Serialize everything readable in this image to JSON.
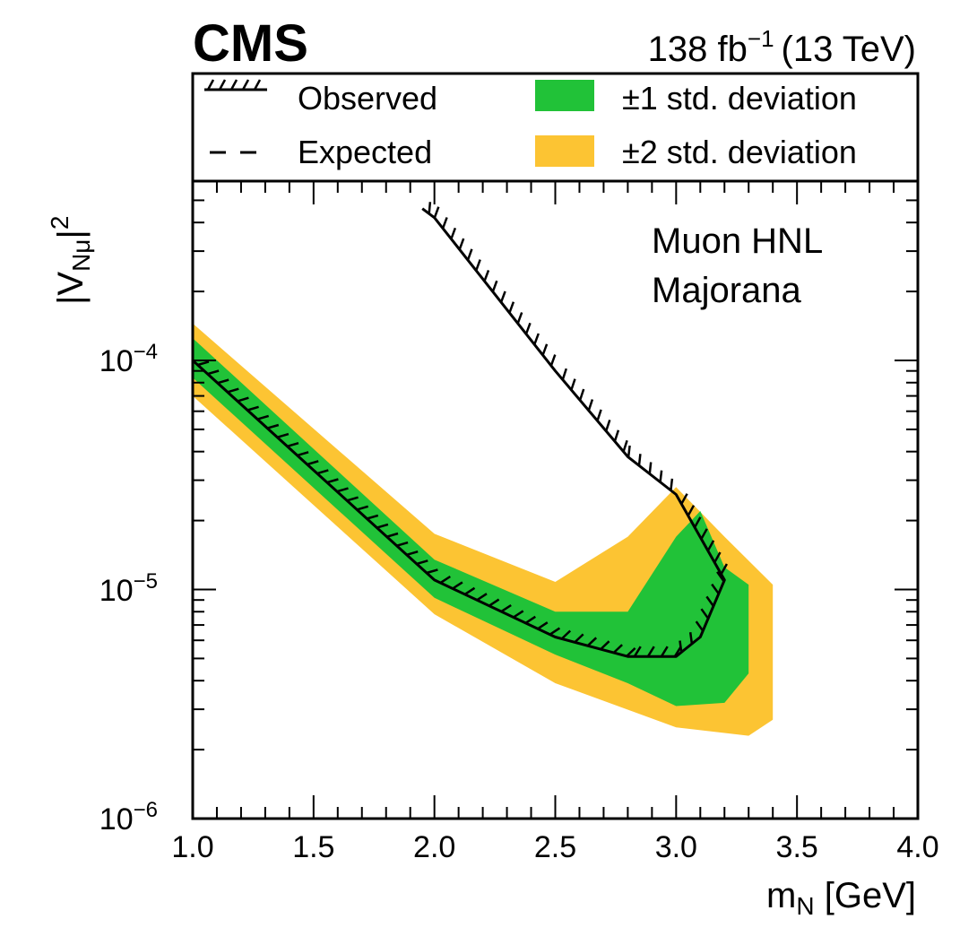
{
  "header": {
    "experiment": "CMS",
    "luminosity": "138 fb",
    "luminosity_exp": "−1",
    "energy": "(13 TeV)"
  },
  "annotation": {
    "line1": "Muon HNL",
    "line2": "Majorana"
  },
  "legend": {
    "observed": "Observed",
    "expected": "Expected",
    "band1": "±1 std. deviation",
    "band2": "±2 std. deviation"
  },
  "axes": {
    "x_label_main": "m",
    "x_label_sub": "N",
    "x_label_unit": " [GeV]",
    "y_label_open": "|V",
    "y_label_sub": "Nμ",
    "y_label_close": "|",
    "y_label_pow": "2",
    "y_tick_base": "10",
    "y_tick_exps": [
      "−6",
      "−5",
      "−4"
    ]
  },
  "colors": {
    "band1": "#21c238",
    "band2": "#fcc433",
    "line": "#000000"
  },
  "chart_data": {
    "type": "line",
    "xlim": [
      1.0,
      4.0
    ],
    "ylim": [
      1e-06,
      0.00055
    ],
    "y_scale": "log",
    "x_ticks": [
      "1.0",
      "1.5",
      "2.0",
      "2.5",
      "3.0",
      "3.5",
      "4.0"
    ],
    "grid": false,
    "legend_position": "top",
    "series": [
      {
        "name": "Observed",
        "style": "hatched-line",
        "x": [
          1.0,
          2.0,
          2.5,
          2.8,
          3.0,
          3.1,
          3.2,
          3.0,
          2.8,
          2.5,
          2.0,
          1.95
        ],
        "y": [
          0.0001,
          1.1e-05,
          6.2e-06,
          5.1e-06,
          5.1e-06,
          6.2e-06,
          1.1e-05,
          2.6e-05,
          3.8e-05,
          9e-05,
          0.00042,
          0.00046
        ]
      },
      {
        "name": "±1 std. deviation",
        "style": "band",
        "x": [
          1.0,
          2.0,
          2.5,
          2.8,
          3.0,
          3.1,
          3.2,
          3.3,
          3.3,
          3.2,
          3.0,
          2.8,
          2.5,
          2.0,
          1.0
        ],
        "y": [
          0.000125,
          1.35e-05,
          8e-06,
          8e-06,
          1.7e-05,
          2.2e-05,
          1.25e-05,
          1.05e-05,
          4.3e-06,
          3.2e-06,
          3.1e-06,
          3.9e-06,
          5.2e-06,
          9.2e-06,
          8.4e-05
        ],
        "note": "green band"
      },
      {
        "name": "±2 std. deviation",
        "style": "band",
        "x": [
          1.0,
          2.0,
          2.5,
          2.8,
          3.0,
          3.2,
          3.4,
          3.4,
          3.3,
          3.0,
          2.5,
          2.0,
          1.0
        ],
        "y": [
          0.000145,
          1.75e-05,
          1.08e-05,
          1.7e-05,
          2.8e-05,
          1.7e-05,
          1.05e-05,
          2.7e-06,
          2.3e-06,
          2.5e-06,
          3.9e-06,
          7.8e-06,
          7e-05
        ],
        "note": "yellow band"
      }
    ]
  }
}
